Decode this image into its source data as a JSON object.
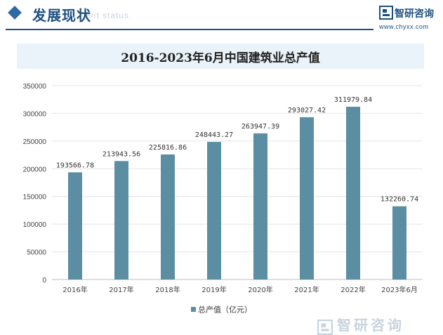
{
  "header": {
    "section_title": "发展现状",
    "section_subtitle": "ent status",
    "logo_text": "智研咨询",
    "logo_url": "www.chyxx.com"
  },
  "footer": {
    "logo_text": "智研咨询"
  },
  "colors": {
    "accent": "#1d4f80",
    "bar": "#5b8ea3",
    "title_bg": "#e9f3f9"
  },
  "chart_data": {
    "type": "bar",
    "title": "2016-2023年6月中国建筑业总产值",
    "categories": [
      "2016年",
      "2017年",
      "2018年",
      "2019年",
      "2020年",
      "2021年",
      "2022年",
      "2023年6月"
    ],
    "series": [
      {
        "name": "总产值（亿元）",
        "values": [
          193566.78,
          213943.56,
          225816.86,
          248443.27,
          263947.39,
          293027.42,
          311979.84,
          132260.74
        ],
        "labels": [
          "193566.78",
          "213943.56",
          "225816.86",
          "248443.27",
          "263947.39",
          "293027.42",
          "311979.84",
          "132260.74"
        ]
      }
    ],
    "ylim": [
      0,
      350000
    ],
    "yticks": [
      "0",
      "50000",
      "100000",
      "150000",
      "200000",
      "250000",
      "300000",
      "350000"
    ],
    "grid": true,
    "legend": "bottom"
  }
}
